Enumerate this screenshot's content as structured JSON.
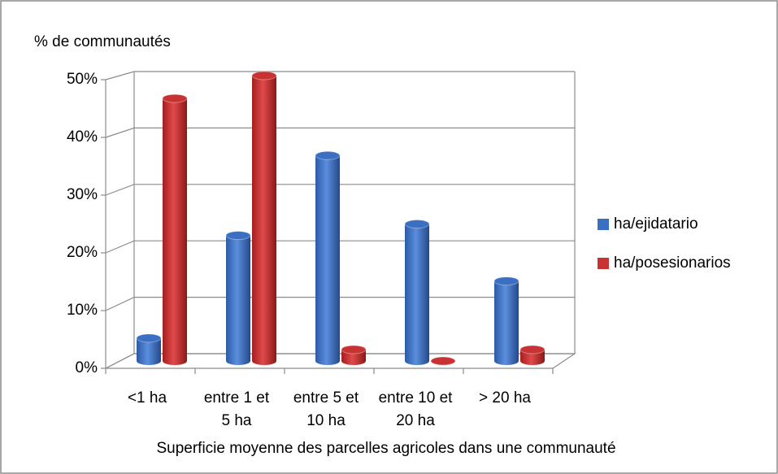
{
  "chart_data": {
    "type": "bar3d",
    "y_axis_title": "% de communautés",
    "x_axis_title": "Superficie moyenne des parcelles agricoles  dans une communauté",
    "categories": [
      "<1 ha",
      "entre 1 et 5 ha",
      "entre 5 et 10 ha",
      "entre 10 et 20 ha",
      "> 20 ha"
    ],
    "series": [
      {
        "name": "ha/ejidatario",
        "color": "#3a6fc4",
        "values": [
          4,
          22,
          36,
          24,
          14
        ]
      },
      {
        "name": "ha/posesionarios",
        "color": "#c83232",
        "values": [
          46,
          50,
          2,
          0,
          2
        ]
      }
    ],
    "ylim": [
      0,
      50
    ],
    "yticks": [
      {
        "value": 0,
        "label": "0%"
      },
      {
        "value": 10,
        "label": "10%"
      },
      {
        "value": 20,
        "label": "20%"
      },
      {
        "value": 30,
        "label": "30%"
      },
      {
        "value": 40,
        "label": "40%"
      },
      {
        "value": 50,
        "label": "50%"
      }
    ],
    "grid": true,
    "legend": "right"
  }
}
